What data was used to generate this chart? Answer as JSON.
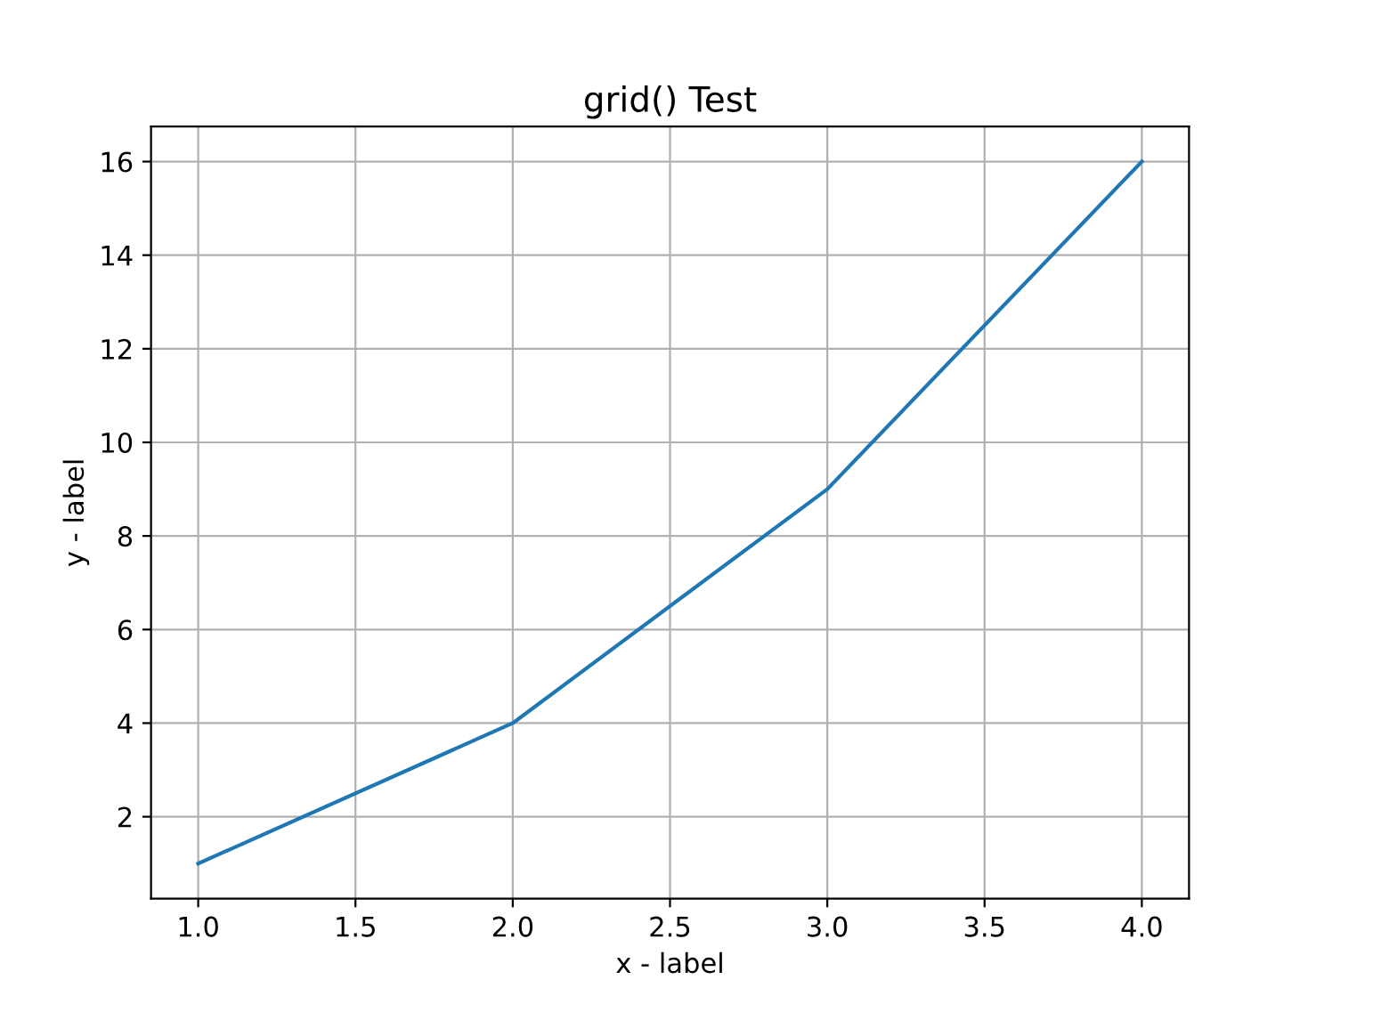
{
  "chart_data": {
    "type": "line",
    "title": "grid() Test",
    "xlabel": "x - label",
    "ylabel": "y - label",
    "x": [
      1,
      2,
      3,
      4
    ],
    "series": [
      {
        "color": "#1f77b4",
        "values": [
          1,
          4,
          9,
          16
        ]
      }
    ],
    "xlim": [
      0.85,
      4.15
    ],
    "xticks": [
      {
        "value": 1,
        "label": "1.0"
      },
      {
        "value": 1.5,
        "label": "1.5"
      },
      {
        "value": 2,
        "label": "2.0"
      },
      {
        "value": 2.5,
        "label": "2.5"
      },
      {
        "value": 3,
        "label": "3.0"
      },
      {
        "value": 3.5,
        "label": "3.5"
      },
      {
        "value": 4,
        "label": "4.0"
      }
    ],
    "ylim": [
      0.25,
      16.75
    ],
    "yticks": [
      2,
      4,
      6,
      8,
      10,
      12,
      14,
      16
    ],
    "grid": true,
    "marker": "none",
    "line_style": "solid"
  }
}
